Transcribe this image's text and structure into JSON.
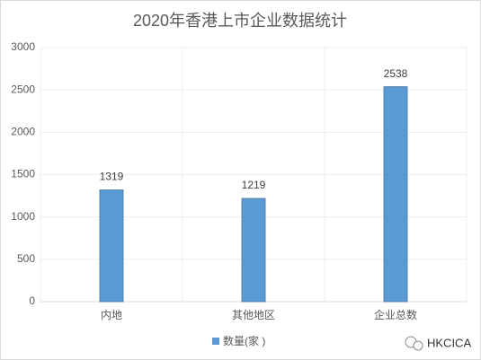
{
  "chart_data": {
    "type": "bar",
    "title": "2020年香港上市企业数据统计",
    "categories": [
      "内地",
      "其他地区",
      "企业总数"
    ],
    "series": [
      {
        "name": "数量(家 )",
        "color": "#5b9bd5",
        "values": [
          1319,
          1219,
          2538
        ]
      }
    ],
    "ylim": [
      0,
      3000
    ],
    "yticks": [
      0,
      500,
      1000,
      1500,
      2000,
      2500,
      3000
    ],
    "grid": true,
    "data_labels": true,
    "legend": "bottom",
    "watermark": "HKCICA"
  }
}
